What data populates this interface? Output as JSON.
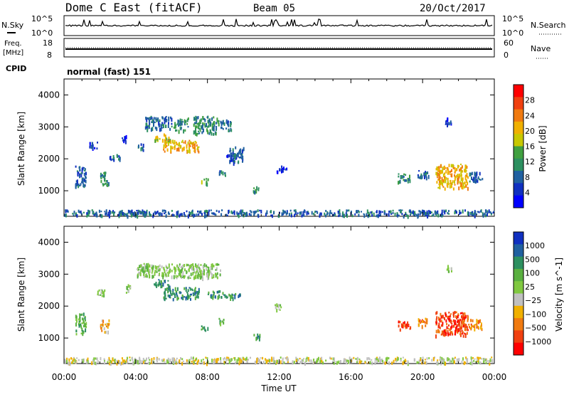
{
  "header": {
    "station": "Dome C East (fitACF)",
    "beam": "Beam 05",
    "date": "20/Oct/2017"
  },
  "top_panels": {
    "nsky_label": "N.Sky",
    "nsky_top": "10^5",
    "nsky_bottom": "10^0",
    "nsearch_label": "N.Search",
    "nsearch_top": "10^5",
    "nsearch_bottom": "10^0",
    "freq_label_1": "Freq.",
    "freq_label_2": "[MHz]",
    "freq_top": "18",
    "freq_bottom": "8",
    "nave_label": "Nave",
    "nave_top": "60",
    "nave_bottom": "0",
    "cpid_label": "CPID",
    "cpid_value": "normal (fast) 151"
  },
  "chart_data": [
    {
      "type": "heatmap",
      "title": "",
      "xlabel": "Time UT",
      "ylabel": "Slant Range [km]",
      "x_ticks": [
        "00:00",
        "04:00",
        "08:00",
        "12:00",
        "16:00",
        "20:00",
        "00:00"
      ],
      "y_ticks": [
        1000,
        2000,
        3000,
        4000
      ],
      "xlim_hours": [
        0,
        24
      ],
      "ylim_km": [
        200,
        4500
      ],
      "colorbar": {
        "label": "Power [dB]",
        "ticks": [
          "28",
          "24",
          "20",
          "16",
          "12",
          "8",
          "4"
        ],
        "colors": [
          "#ff0000",
          "#f04010",
          "#f07a10",
          "#f0b000",
          "#c8c800",
          "#40a040",
          "#2d9060",
          "#2060a0",
          "#1030c0",
          "#0000ff"
        ]
      },
      "regions": [
        {
          "x": [
            0.6,
            1.2
          ],
          "y": [
            1150,
            1800
          ],
          "level": 2
        },
        {
          "x": [
            1.4,
            1.9
          ],
          "y": [
            2350,
            2550
          ],
          "level": 1
        },
        {
          "x": [
            2.0,
            2.5
          ],
          "y": [
            1200,
            1600
          ],
          "level": 3
        },
        {
          "x": [
            2.5,
            3.1
          ],
          "y": [
            1950,
            2150
          ],
          "level": 2
        },
        {
          "x": [
            3.2,
            3.5
          ],
          "y": [
            2550,
            2750
          ],
          "level": 1
        },
        {
          "x": [
            4.1,
            4.4
          ],
          "y": [
            2300,
            2500
          ],
          "level": 2
        },
        {
          "x": [
            4.5,
            6.0
          ],
          "y": [
            2950,
            3350
          ],
          "level": 2
        },
        {
          "x": [
            5.0,
            5.9
          ],
          "y": [
            2600,
            2800
          ],
          "level": 5
        },
        {
          "x": [
            5.5,
            7.5
          ],
          "y": [
            2250,
            2600
          ],
          "level": 6
        },
        {
          "x": [
            6.1,
            6.9
          ],
          "y": [
            2900,
            3300
          ],
          "level": 3
        },
        {
          "x": [
            7.2,
            8.6
          ],
          "y": [
            2800,
            3350
          ],
          "level": 3
        },
        {
          "x": [
            8.7,
            9.3
          ],
          "y": [
            2900,
            3250
          ],
          "level": 2
        },
        {
          "x": [
            7.6,
            8.0
          ],
          "y": [
            1250,
            1400
          ],
          "level": 4
        },
        {
          "x": [
            8.6,
            9.0
          ],
          "y": [
            1500,
            1650
          ],
          "level": 2
        },
        {
          "x": [
            9.0,
            9.6
          ],
          "y": [
            2000,
            2200
          ],
          "level": 1
        },
        {
          "x": [
            9.2,
            10.0
          ],
          "y": [
            1900,
            2400
          ],
          "level": 2
        },
        {
          "x": [
            10.5,
            10.9
          ],
          "y": [
            950,
            1150
          ],
          "level": 3
        },
        {
          "x": [
            11.8,
            12.4
          ],
          "y": [
            1600,
            1800
          ],
          "level": 1
        },
        {
          "x": [
            18.6,
            19.3
          ],
          "y": [
            1300,
            1550
          ],
          "level": 3
        },
        {
          "x": [
            19.7,
            20.3
          ],
          "y": [
            1400,
            1650
          ],
          "level": 2
        },
        {
          "x": [
            20.7,
            22.5
          ],
          "y": [
            1100,
            1850
          ],
          "level": 6
        },
        {
          "x": [
            21.2,
            21.6
          ],
          "y": [
            3100,
            3300
          ],
          "level": 1
        },
        {
          "x": [
            22.5,
            23.3
          ],
          "y": [
            1300,
            1600
          ],
          "level": 2
        },
        {
          "x": [
            0.0,
            24.0
          ],
          "y": [
            250,
            420
          ],
          "level": 2
        }
      ]
    },
    {
      "type": "heatmap",
      "title": "",
      "xlabel": "Time UT",
      "ylabel": "Slant Range [km]",
      "x_ticks": [
        "00:00",
        "04:00",
        "08:00",
        "12:00",
        "16:00",
        "20:00",
        "00:00"
      ],
      "y_ticks": [
        1000,
        2000,
        3000,
        4000
      ],
      "xlim_hours": [
        0,
        24
      ],
      "ylim_km": [
        200,
        4500
      ],
      "colorbar": {
        "label": "Velocity [m s^-1]",
        "ticks": [
          "1000",
          "500",
          "100",
          "25",
          "−25",
          "−100",
          "−500",
          "−1000"
        ],
        "colors": [
          "#1030c0",
          "#2060a0",
          "#2d9060",
          "#5ab040",
          "#80c840",
          "#c0c0c0",
          "#f0b000",
          "#f07a10",
          "#f04010",
          "#ff0000"
        ]
      },
      "regions": [
        {
          "x": [
            0.6,
            1.2
          ],
          "y": [
            1150,
            1800
          ],
          "level": 6
        },
        {
          "x": [
            1.8,
            2.3
          ],
          "y": [
            2350,
            2550
          ],
          "level": 5
        },
        {
          "x": [
            2.0,
            2.5
          ],
          "y": [
            1200,
            1600
          ],
          "level": 3
        },
        {
          "x": [
            3.4,
            3.7
          ],
          "y": [
            2450,
            2700
          ],
          "level": 5
        },
        {
          "x": [
            4.0,
            6.0
          ],
          "y": [
            2950,
            3350
          ],
          "level": 5
        },
        {
          "x": [
            5.0,
            5.9
          ],
          "y": [
            2600,
            2850
          ],
          "level": 7
        },
        {
          "x": [
            5.5,
            7.5
          ],
          "y": [
            2250,
            2600
          ],
          "level": 7
        },
        {
          "x": [
            6.1,
            8.7
          ],
          "y": [
            2900,
            3350
          ],
          "level": 5
        },
        {
          "x": [
            8.0,
            9.0
          ],
          "y": [
            2300,
            2500
          ],
          "level": 7
        },
        {
          "x": [
            9.0,
            9.8
          ],
          "y": [
            2250,
            2450
          ],
          "level": 7
        },
        {
          "x": [
            7.6,
            8.0
          ],
          "y": [
            1250,
            1400
          ],
          "level": 7
        },
        {
          "x": [
            8.6,
            9.0
          ],
          "y": [
            1500,
            1650
          ],
          "level": 6
        },
        {
          "x": [
            10.5,
            10.9
          ],
          "y": [
            950,
            1150
          ],
          "level": 7
        },
        {
          "x": [
            11.7,
            12.1
          ],
          "y": [
            1900,
            2100
          ],
          "level": 5
        },
        {
          "x": [
            18.6,
            19.3
          ],
          "y": [
            1300,
            1550
          ],
          "level": 1
        },
        {
          "x": [
            19.7,
            20.3
          ],
          "y": [
            1400,
            1650
          ],
          "level": 2
        },
        {
          "x": [
            20.7,
            22.5
          ],
          "y": [
            1100,
            1850
          ],
          "level": 1
        },
        {
          "x": [
            21.2,
            21.6
          ],
          "y": [
            3100,
            3300
          ],
          "level": 5
        },
        {
          "x": [
            22.5,
            23.3
          ],
          "y": [
            1300,
            1600
          ],
          "level": 2
        },
        {
          "x": [
            0.0,
            24.0
          ],
          "y": [
            250,
            420
          ],
          "level": 4
        }
      ]
    }
  ]
}
